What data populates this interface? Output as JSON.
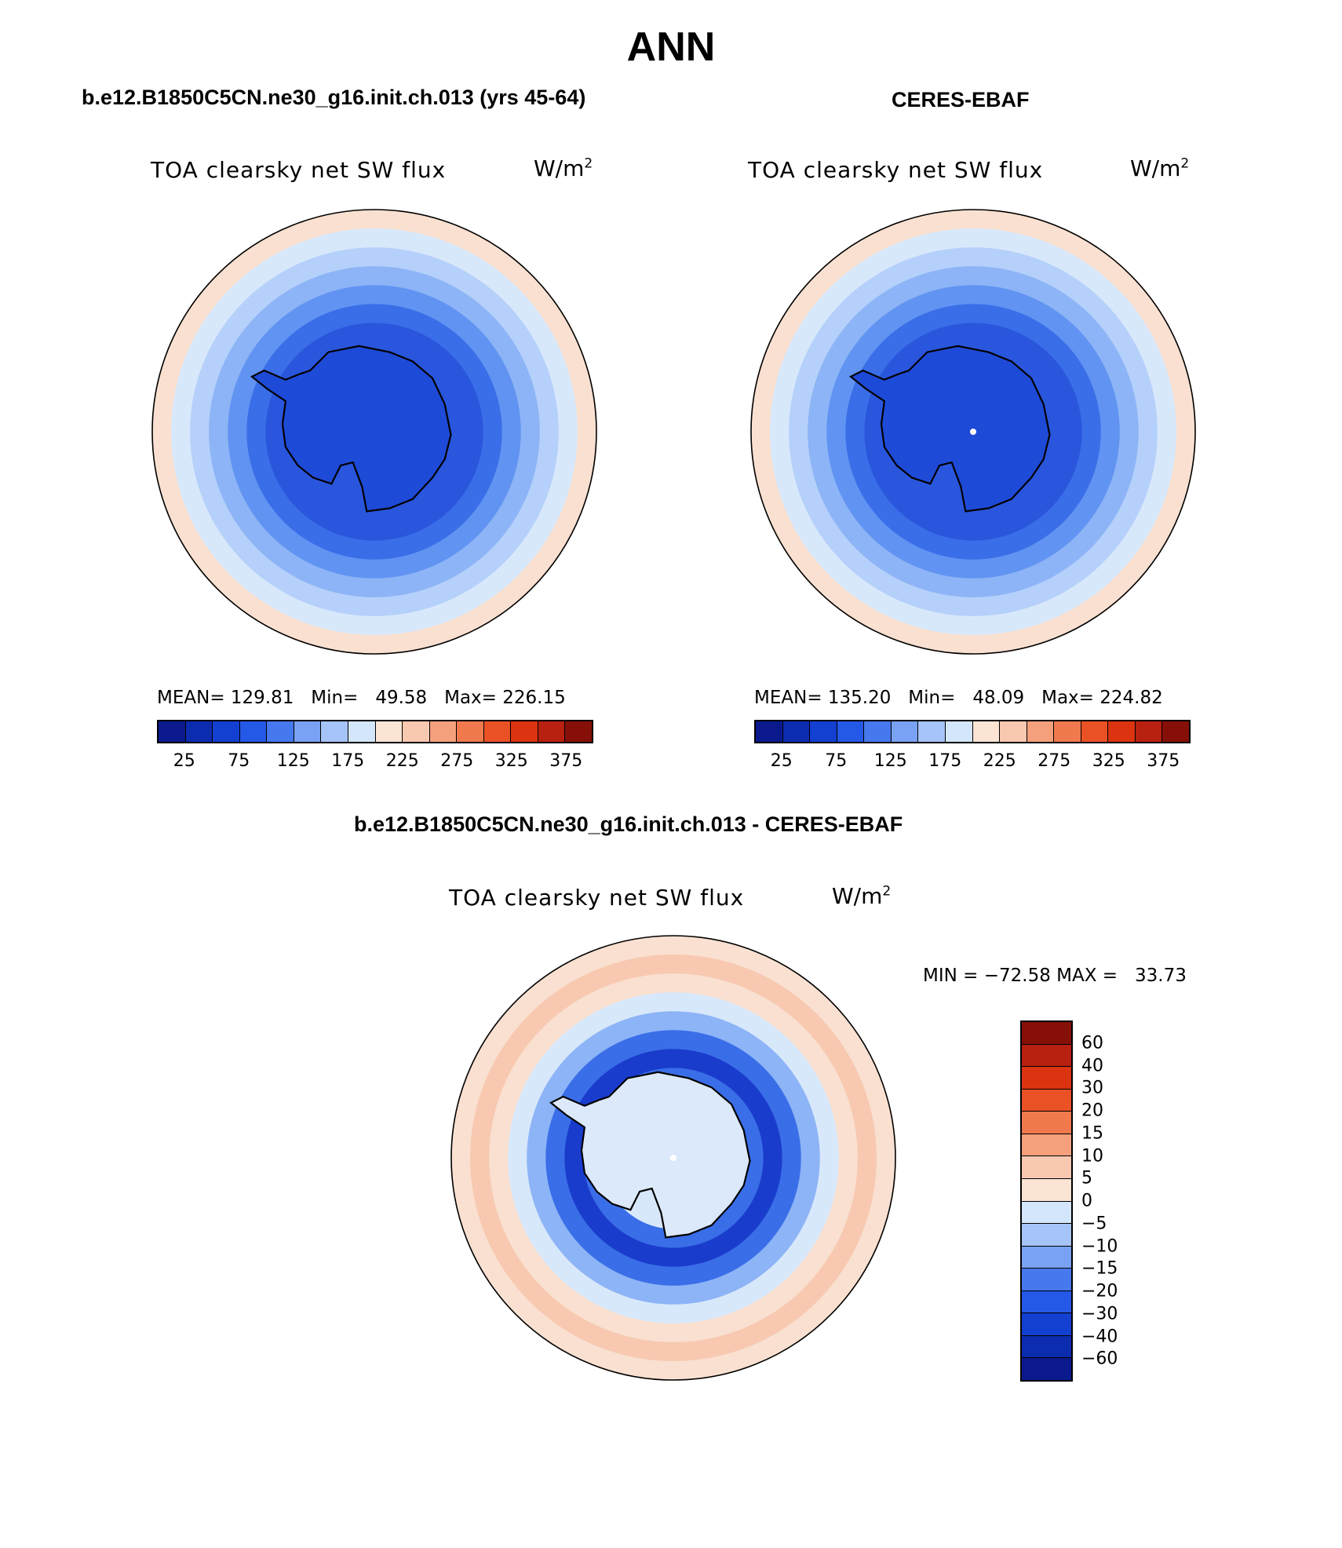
{
  "title": "ANN",
  "panels": [
    {
      "case_title": "b.e12.B1850C5CN.ne30_g16.init.ch.013 (yrs 45-64)",
      "variable": "TOA clearsky net SW flux",
      "units_base": "W/m",
      "units_exp": "2",
      "stats": "MEAN= 129.81   Min=   49.58   Max= 226.15",
      "rings": [
        "#f9e0d0",
        "#d8e8fb",
        "#b5d0fa",
        "#8db4f6",
        "#6193f2",
        "#3a6ee8",
        "#2a56dd"
      ],
      "inner_color": "#1e4ad8"
    },
    {
      "case_title": "CERES-EBAF",
      "variable": "TOA clearsky net SW flux",
      "units_base": "W/m",
      "units_exp": "2",
      "stats": "MEAN= 135.20   Min=   48.09   Max= 224.82",
      "rings": [
        "#f9e0d0",
        "#d8e8fb",
        "#b5d0fa",
        "#8db4f6",
        "#6193f2",
        "#3a6ee8",
        "#2a56dd"
      ],
      "inner_color": "#1e4ad8"
    }
  ],
  "colorbar_h": {
    "colors": [
      "#0a1a8c",
      "#0c2cb0",
      "#1340d0",
      "#2458e6",
      "#4678ee",
      "#7aa2f4",
      "#a6c4f8",
      "#d4e6fb",
      "#fbe4d4",
      "#f8c8b0",
      "#f5a07c",
      "#f07a4e",
      "#ea5226",
      "#dc3410",
      "#b82010",
      "#861008"
    ],
    "ticks": [
      "25",
      "75",
      "125",
      "175",
      "225",
      "275",
      "325",
      "375"
    ]
  },
  "diff_panel": {
    "case_title": "b.e12.B1850C5CN.ne30_g16.init.ch.013 - CERES-EBAF",
    "variable": "TOA clearsky net SW flux",
    "units_base": "W/m",
    "units_exp": "2",
    "minmax": "MIN = −72.58 MAX =   33.73",
    "rings": [
      "#f9e0d0",
      "#f8c8b0",
      "#f9e0d0",
      "#d8e8fb",
      "#8db4f6",
      "#3a6ee8",
      "#1a3ccc",
      "#3a6ee8",
      "#d8e8fb"
    ],
    "inner_color": "#dce9fb"
  },
  "colorbar_v": {
    "colors": [
      "#861008",
      "#b82010",
      "#dc3410",
      "#ea5226",
      "#f07a4e",
      "#f5a07c",
      "#f8c8b0",
      "#fbe4d4",
      "#d4e6fb",
      "#a6c4f8",
      "#7aa2f4",
      "#4678ee",
      "#2458e6",
      "#1340d0",
      "#0c2cb0",
      "#0a1a8c"
    ],
    "labels": [
      "60",
      "40",
      "30",
      "20",
      "15",
      "10",
      "5",
      "0",
      "−5",
      "−10",
      "−15",
      "−20",
      "−30",
      "−40",
      "−60"
    ]
  }
}
